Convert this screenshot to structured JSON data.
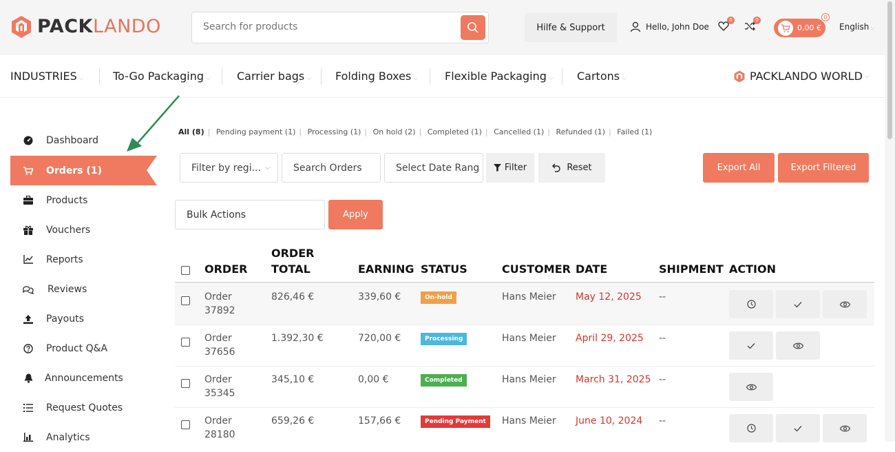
{
  "brand": {
    "logo_bold": "PACK",
    "logo_light": "LANDO",
    "accent": "#ef7a5f"
  },
  "header": {
    "search_placeholder": "Search for products",
    "help_label": "Hilfe & Support",
    "user_greeting": "Hello, John Doe",
    "wishlist_count": "0",
    "compare_count": "0",
    "cart_total": "0,00 €",
    "cart_count": "0",
    "language": "English"
  },
  "nav": {
    "items": [
      {
        "label": "INDUSTRIES"
      },
      {
        "label": "To-Go Packaging"
      },
      {
        "label": "Carrier bags"
      },
      {
        "label": "Folding Boxes"
      },
      {
        "label": "Flexible Packaging"
      },
      {
        "label": "Cartons"
      }
    ],
    "world_label": "PACKLANDO WORLD"
  },
  "sidebar": {
    "items": [
      {
        "label": "Dashboard",
        "icon": "dashboard-icon"
      },
      {
        "label": "Orders (1)",
        "icon": "cart-icon"
      },
      {
        "label": "Products",
        "icon": "briefcase-icon"
      },
      {
        "label": "Vouchers",
        "icon": "gift-icon"
      },
      {
        "label": "Reports",
        "icon": "line-chart-icon"
      },
      {
        "label": "Reviews",
        "icon": "comments-icon"
      },
      {
        "label": "Payouts",
        "icon": "upload-icon"
      },
      {
        "label": "Product Q&A",
        "icon": "question-circle-icon"
      },
      {
        "label": "Announcements",
        "icon": "bell-icon"
      },
      {
        "label": "Request Quotes",
        "icon": "list-icon"
      },
      {
        "label": "Analytics",
        "icon": "bar-chart-icon"
      }
    ]
  },
  "status_filters": [
    "All (8)",
    "Pending payment (1)",
    "Processing (1)",
    "On hold (2)",
    "Completed (1)",
    "Cancelled (1)",
    "Refunded (1)",
    "Failed (1)"
  ],
  "filters": {
    "region_placeholder": "Filter by regi...",
    "search_placeholder": "Search Orders",
    "date_placeholder": "Select Date Rang",
    "filter_label": "Filter",
    "reset_label": "Reset",
    "export_all": "Export All",
    "export_filtered": "Export Filtered",
    "bulk_actions": "Bulk Actions",
    "apply": "Apply"
  },
  "table": {
    "headers": {
      "order": "ORDER",
      "order_total_1": "ORDER",
      "order_total_2": "TOTAL",
      "earning": "EARNING",
      "status": "STATUS",
      "customer": "CUSTOMER",
      "date": "DATE",
      "shipment": "SHIPMENT",
      "action": "ACTION"
    },
    "rows": [
      {
        "order_1": "Order",
        "order_2": "37892",
        "total": "826,46 €",
        "earning": "339,60 €",
        "status": "On-hold",
        "status_color": "#f0a04b",
        "customer": "Hans Meier",
        "date": "May 12, 2025",
        "shipment": "--"
      },
      {
        "order_1": "Order",
        "order_2": "37656",
        "total": "1.392,30 €",
        "earning": "720,00 €",
        "status": "Processing",
        "status_color": "#4bb8dc",
        "customer": "Hans Meier",
        "date": "April 29, 2025",
        "shipment": "--"
      },
      {
        "order_1": "Order",
        "order_2": "35345",
        "total": "345,10 €",
        "earning": "0,00 €",
        "status": "Completed",
        "status_color": "#4caf50",
        "customer": "Hans Meier",
        "date": "March 31, 2025",
        "shipment": "--"
      },
      {
        "order_1": "Order",
        "order_2": "28180",
        "total": "659,26 €",
        "earning": "157,66 €",
        "status": "Pending Payment",
        "status_color": "#e23a3a",
        "customer": "Hans Meier",
        "date": "June 10, 2024",
        "shipment": "--"
      }
    ]
  }
}
